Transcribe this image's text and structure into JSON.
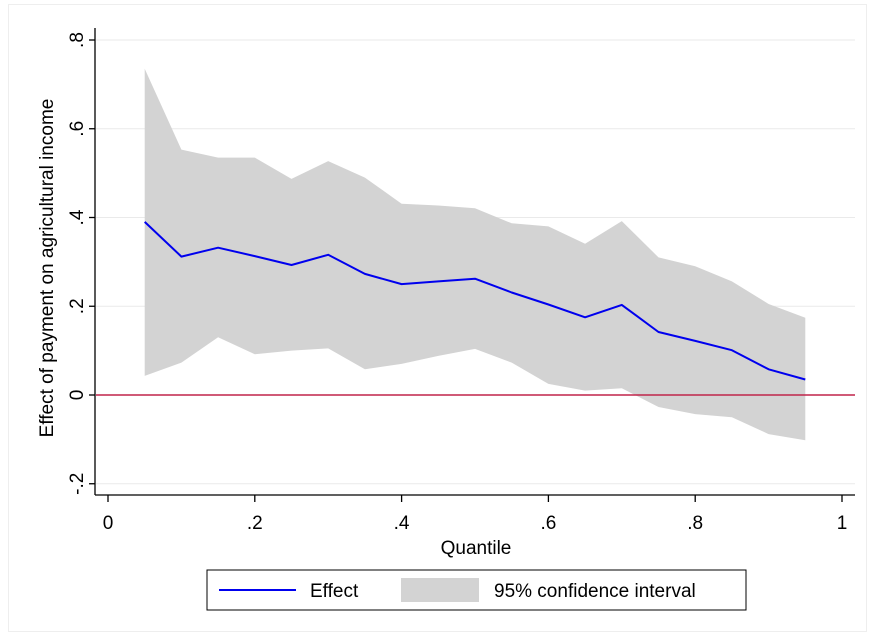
{
  "chart_data": {
    "type": "line",
    "xlabel": "Quantile",
    "ylabel": "Effect of payment on agricultural income",
    "xlim": [
      0,
      1
    ],
    "ylim": [
      -0.2,
      0.8
    ],
    "x_ticks": [
      0,
      0.2,
      0.4,
      0.6,
      0.8,
      1
    ],
    "x_tick_labels": [
      "0",
      ".2",
      ".4",
      ".6",
      ".8",
      "1"
    ],
    "y_ticks": [
      -0.2,
      0,
      0.2,
      0.4,
      0.6,
      0.8
    ],
    "y_tick_labels": [
      "-.2",
      "0",
      ".2",
      ".4",
      ".6",
      ".8"
    ],
    "grid": "horizontal",
    "reference_line": {
      "y": 0,
      "color": "#c0244a"
    },
    "x": [
      0.05,
      0.1,
      0.15,
      0.2,
      0.25,
      0.3,
      0.35,
      0.4,
      0.45,
      0.5,
      0.55,
      0.6,
      0.65,
      0.7,
      0.75,
      0.8,
      0.85,
      0.9,
      0.95
    ],
    "series": [
      {
        "name": "Effect",
        "kind": "line",
        "color": "#0000ee",
        "values": [
          0.39,
          0.312,
          0.332,
          0.313,
          0.293,
          0.316,
          0.273,
          0.25,
          0.256,
          0.262,
          0.231,
          0.204,
          0.175,
          0.203,
          0.142,
          0.122,
          0.101,
          0.058,
          0.035
        ]
      },
      {
        "name": "95% confidence interval",
        "kind": "band",
        "color": "#d3d3d3",
        "upper": [
          0.735,
          0.553,
          0.535,
          0.535,
          0.487,
          0.527,
          0.49,
          0.431,
          0.427,
          0.421,
          0.387,
          0.38,
          0.341,
          0.392,
          0.31,
          0.29,
          0.256,
          0.205,
          0.174
        ],
        "lower": [
          0.043,
          0.073,
          0.13,
          0.092,
          0.1,
          0.105,
          0.058,
          0.07,
          0.088,
          0.104,
          0.073,
          0.025,
          0.01,
          0.015,
          -0.027,
          -0.043,
          -0.05,
          -0.088,
          -0.102
        ]
      }
    ],
    "legend": {
      "position": "bottom",
      "entries": [
        "Effect",
        "95% confidence interval"
      ]
    }
  }
}
